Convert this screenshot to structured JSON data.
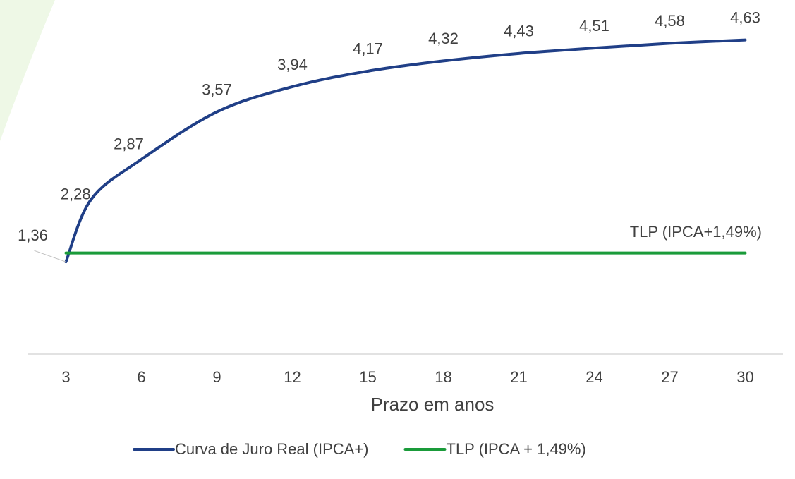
{
  "chart_data": {
    "type": "line",
    "x": [
      3,
      4,
      6,
      9,
      12,
      15,
      18,
      21,
      24,
      27,
      30
    ],
    "series": [
      {
        "name": "Curva de Juro Real (IPCA+)",
        "color": "#203f87",
        "values": [
          1.36,
          2.28,
          2.87,
          3.57,
          3.94,
          4.17,
          4.32,
          4.43,
          4.51,
          4.58,
          4.63
        ],
        "value_labels": [
          "1,36",
          "2,28",
          "2,87",
          "3,57",
          "3,94",
          "4,17",
          "4,32",
          "4,43",
          "4,51",
          "4,58",
          "4,63"
        ]
      },
      {
        "name": "TLP (IPCA + 1,49%)",
        "color": "#1a9b3a",
        "values": [
          1.49,
          1.49,
          1.49,
          1.49,
          1.49,
          1.49,
          1.49,
          1.49,
          1.49,
          1.49,
          1.49
        ]
      }
    ],
    "annotation": "TLP (IPCA+1,49%)",
    "x_label": "Prazo em anos",
    "xlim": [
      1.5,
      31.5
    ],
    "xticks": [
      3,
      6,
      9,
      12,
      15,
      18,
      21,
      24,
      27,
      30
    ],
    "ylim": [
      0,
      5
    ],
    "legend": "bottom"
  }
}
